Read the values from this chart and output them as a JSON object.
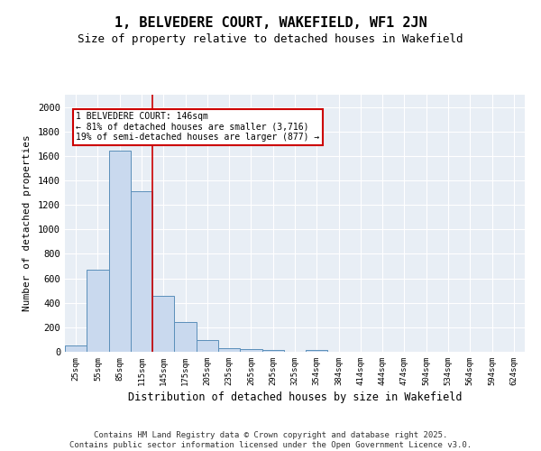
{
  "title": "1, BELVEDERE COURT, WAKEFIELD, WF1 2JN",
  "subtitle": "Size of property relative to detached houses in Wakefield",
  "xlabel": "Distribution of detached houses by size in Wakefield",
  "ylabel": "Number of detached properties",
  "categories": [
    "25sqm",
    "55sqm",
    "85sqm",
    "115sqm",
    "145sqm",
    "175sqm",
    "205sqm",
    "235sqm",
    "265sqm",
    "295sqm",
    "325sqm",
    "354sqm",
    "384sqm",
    "414sqm",
    "444sqm",
    "474sqm",
    "504sqm",
    "534sqm",
    "564sqm",
    "594sqm",
    "624sqm"
  ],
  "values": [
    55,
    670,
    1640,
    1310,
    455,
    240,
    95,
    30,
    20,
    15,
    0,
    15,
    0,
    0,
    0,
    0,
    0,
    0,
    0,
    0,
    0
  ],
  "bar_color": "#c9d9ee",
  "bar_edge_color": "#5b8fba",
  "vline_color": "#cc0000",
  "vline_x": 3.5,
  "annotation_text": "1 BELVEDERE COURT: 146sqm\n← 81% of detached houses are smaller (3,716)\n19% of semi-detached houses are larger (877) →",
  "annotation_box_color": "#cc0000",
  "ylim": [
    0,
    2100
  ],
  "yticks": [
    0,
    200,
    400,
    600,
    800,
    1000,
    1200,
    1400,
    1600,
    1800,
    2000
  ],
  "background_color": "#e8eef5",
  "grid_color": "#ffffff",
  "footer": "Contains HM Land Registry data © Crown copyright and database right 2025.\nContains public sector information licensed under the Open Government Licence v3.0.",
  "title_fontsize": 11,
  "subtitle_fontsize": 9,
  "xlabel_fontsize": 8.5,
  "ylabel_fontsize": 8,
  "footer_fontsize": 6.5
}
